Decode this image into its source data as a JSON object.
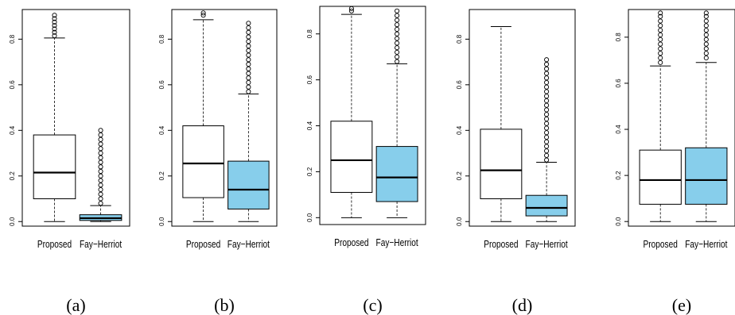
{
  "colors": {
    "proposed": "#ffffff",
    "fay_herriot": "#87ceeb",
    "stroke": "#000000"
  },
  "chart_data": [
    {
      "type": "box",
      "panel_label": "(a)",
      "categories": [
        "Proposed",
        "Fay−Herriot"
      ],
      "yticks": [
        "0.0",
        "0.2",
        "0.4",
        "0.6",
        "0.8"
      ],
      "ylim": [
        -0.02,
        0.93
      ],
      "boxes": [
        {
          "whisker_low": 0.0,
          "q1": 0.1,
          "median": 0.215,
          "q3": 0.38,
          "whisker_high": 0.805,
          "outliers": [
            0.815,
            0.83,
            0.845,
            0.86,
            0.875,
            0.89,
            0.905
          ]
        },
        {
          "whisker_low": 0.0,
          "q1": 0.005,
          "median": 0.015,
          "q3": 0.03,
          "whisker_high": 0.07,
          "outliers": [
            0.08,
            0.1,
            0.12,
            0.14,
            0.16,
            0.18,
            0.2,
            0.22,
            0.24,
            0.26,
            0.28,
            0.3,
            0.32,
            0.34,
            0.36,
            0.38,
            0.4
          ]
        }
      ]
    },
    {
      "type": "box",
      "panel_label": "(b)",
      "categories": [
        "Proposed",
        "Fay−Herriot"
      ],
      "yticks": [
        "0.0",
        "0.2",
        "0.4",
        "0.6",
        "0.8"
      ],
      "ylim": [
        -0.02,
        0.93
      ],
      "boxes": [
        {
          "whisker_low": 0.0,
          "q1": 0.105,
          "median": 0.255,
          "q3": 0.42,
          "whisker_high": 0.885,
          "outliers": [
            0.905,
            0.915
          ]
        },
        {
          "whisker_low": 0.0,
          "q1": 0.055,
          "median": 0.14,
          "q3": 0.265,
          "whisker_high": 0.56,
          "outliers": [
            0.57,
            0.59,
            0.61,
            0.63,
            0.65,
            0.67,
            0.69,
            0.71,
            0.73,
            0.75,
            0.77,
            0.79,
            0.81,
            0.83,
            0.85,
            0.87
          ]
        }
      ]
    },
    {
      "type": "box",
      "panel_label": "(c)",
      "categories": [
        "Proposed",
        "Fay−Herriot"
      ],
      "yticks": [
        "0.0",
        "0.2",
        "0.4",
        "0.6",
        "0.8"
      ],
      "ylim": [
        -0.03,
        0.92
      ],
      "boxes": [
        {
          "whisker_low": 0.0,
          "q1": 0.11,
          "median": 0.25,
          "q3": 0.42,
          "whisker_high": 0.885,
          "outliers": [
            0.9,
            0.91
          ]
        },
        {
          "whisker_low": 0.0,
          "q1": 0.07,
          "median": 0.175,
          "q3": 0.31,
          "whisker_high": 0.67,
          "outliers": [
            0.68,
            0.7,
            0.72,
            0.74,
            0.76,
            0.78,
            0.8,
            0.82,
            0.84,
            0.86,
            0.88,
            0.9
          ]
        }
      ]
    },
    {
      "type": "box",
      "panel_label": "(d)",
      "categories": [
        "Proposed",
        "Fay−Herriot"
      ],
      "yticks": [
        "0.0",
        "0.2",
        "0.4",
        "0.6",
        "0.8"
      ],
      "ylim": [
        -0.02,
        0.93
      ],
      "boxes": [
        {
          "whisker_low": 0.0,
          "q1": 0.1,
          "median": 0.225,
          "q3": 0.405,
          "whisker_high": 0.855,
          "outliers": []
        },
        {
          "whisker_low": 0.0,
          "q1": 0.025,
          "median": 0.06,
          "q3": 0.115,
          "whisker_high": 0.26,
          "outliers": [
            0.27,
            0.29,
            0.31,
            0.33,
            0.35,
            0.37,
            0.39,
            0.41,
            0.43,
            0.45,
            0.47,
            0.49,
            0.51,
            0.53,
            0.55,
            0.57,
            0.59,
            0.61,
            0.63,
            0.65,
            0.67,
            0.69,
            0.71
          ]
        }
      ]
    },
    {
      "type": "box",
      "panel_label": "(e)",
      "categories": [
        "Proposed",
        "Fay−Herriot"
      ],
      "yticks": [
        "0.0",
        "0.2",
        "0.4",
        "0.6",
        "0.8"
      ],
      "ylim": [
        -0.02,
        0.92
      ],
      "boxes": [
        {
          "whisker_low": 0.0,
          "q1": 0.075,
          "median": 0.18,
          "q3": 0.31,
          "whisker_high": 0.675,
          "outliers": [
            0.69,
            0.71,
            0.73,
            0.75,
            0.77,
            0.79,
            0.81,
            0.83,
            0.85,
            0.87,
            0.89,
            0.905
          ]
        },
        {
          "whisker_low": 0.0,
          "q1": 0.075,
          "median": 0.18,
          "q3": 0.32,
          "whisker_high": 0.69,
          "outliers": [
            0.71,
            0.73,
            0.75,
            0.77,
            0.79,
            0.81,
            0.83,
            0.85,
            0.87,
            0.89,
            0.905
          ]
        }
      ]
    }
  ]
}
